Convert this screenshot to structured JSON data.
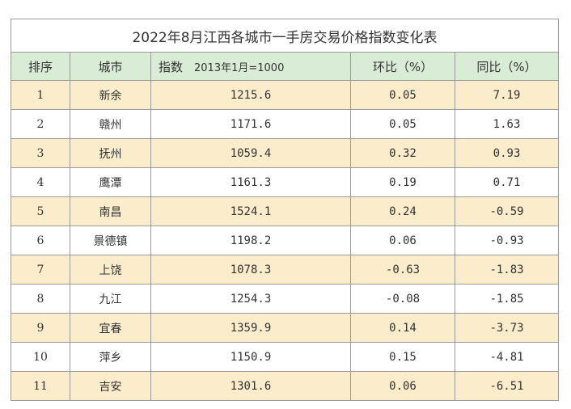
{
  "title": "2022年8月江西各城市一手房交易价格指数变化表",
  "headers": {
    "rank": "排序",
    "city": "城市",
    "index_main": "指数",
    "index_sub": "2013年1月=1000",
    "mom": "环比（%）",
    "yoy": "同比（%）"
  },
  "rows": [
    {
      "rank": "1",
      "city": "新余",
      "index": "1215.6",
      "mom": "0.05",
      "yoy": "7.19"
    },
    {
      "rank": "2",
      "city": "赣州",
      "index": "1171.6",
      "mom": "0.05",
      "yoy": "1.63"
    },
    {
      "rank": "3",
      "city": "抚州",
      "index": "1059.4",
      "mom": "0.32",
      "yoy": "0.93"
    },
    {
      "rank": "4",
      "city": "鹰潭",
      "index": "1161.3",
      "mom": "0.19",
      "yoy": "0.71"
    },
    {
      "rank": "5",
      "city": "南昌",
      "index": "1524.1",
      "mom": "0.24",
      "yoy": "-0.59"
    },
    {
      "rank": "6",
      "city": "景德镇",
      "index": "1198.2",
      "mom": "0.06",
      "yoy": "-0.93"
    },
    {
      "rank": "7",
      "city": "上饶",
      "index": "1078.3",
      "mom": "-0.63",
      "yoy": "-1.83"
    },
    {
      "rank": "8",
      "city": "九江",
      "index": "1254.3",
      "mom": "-0.08",
      "yoy": "-1.85"
    },
    {
      "rank": "9",
      "city": "宜春",
      "index": "1359.9",
      "mom": "0.14",
      "yoy": "-3.73"
    },
    {
      "rank": "10",
      "city": "萍乡",
      "index": "1150.9",
      "mom": "0.15",
      "yoy": "-4.81"
    },
    {
      "rank": "11",
      "city": "吉安",
      "index": "1301.6",
      "mom": "0.06",
      "yoy": "-6.51"
    }
  ],
  "colors": {
    "header_bg": "#d9ecd6",
    "odd_row_bg": "#fbeccb",
    "even_row_bg": "#ffffff",
    "border": "#9a9a9a"
  }
}
